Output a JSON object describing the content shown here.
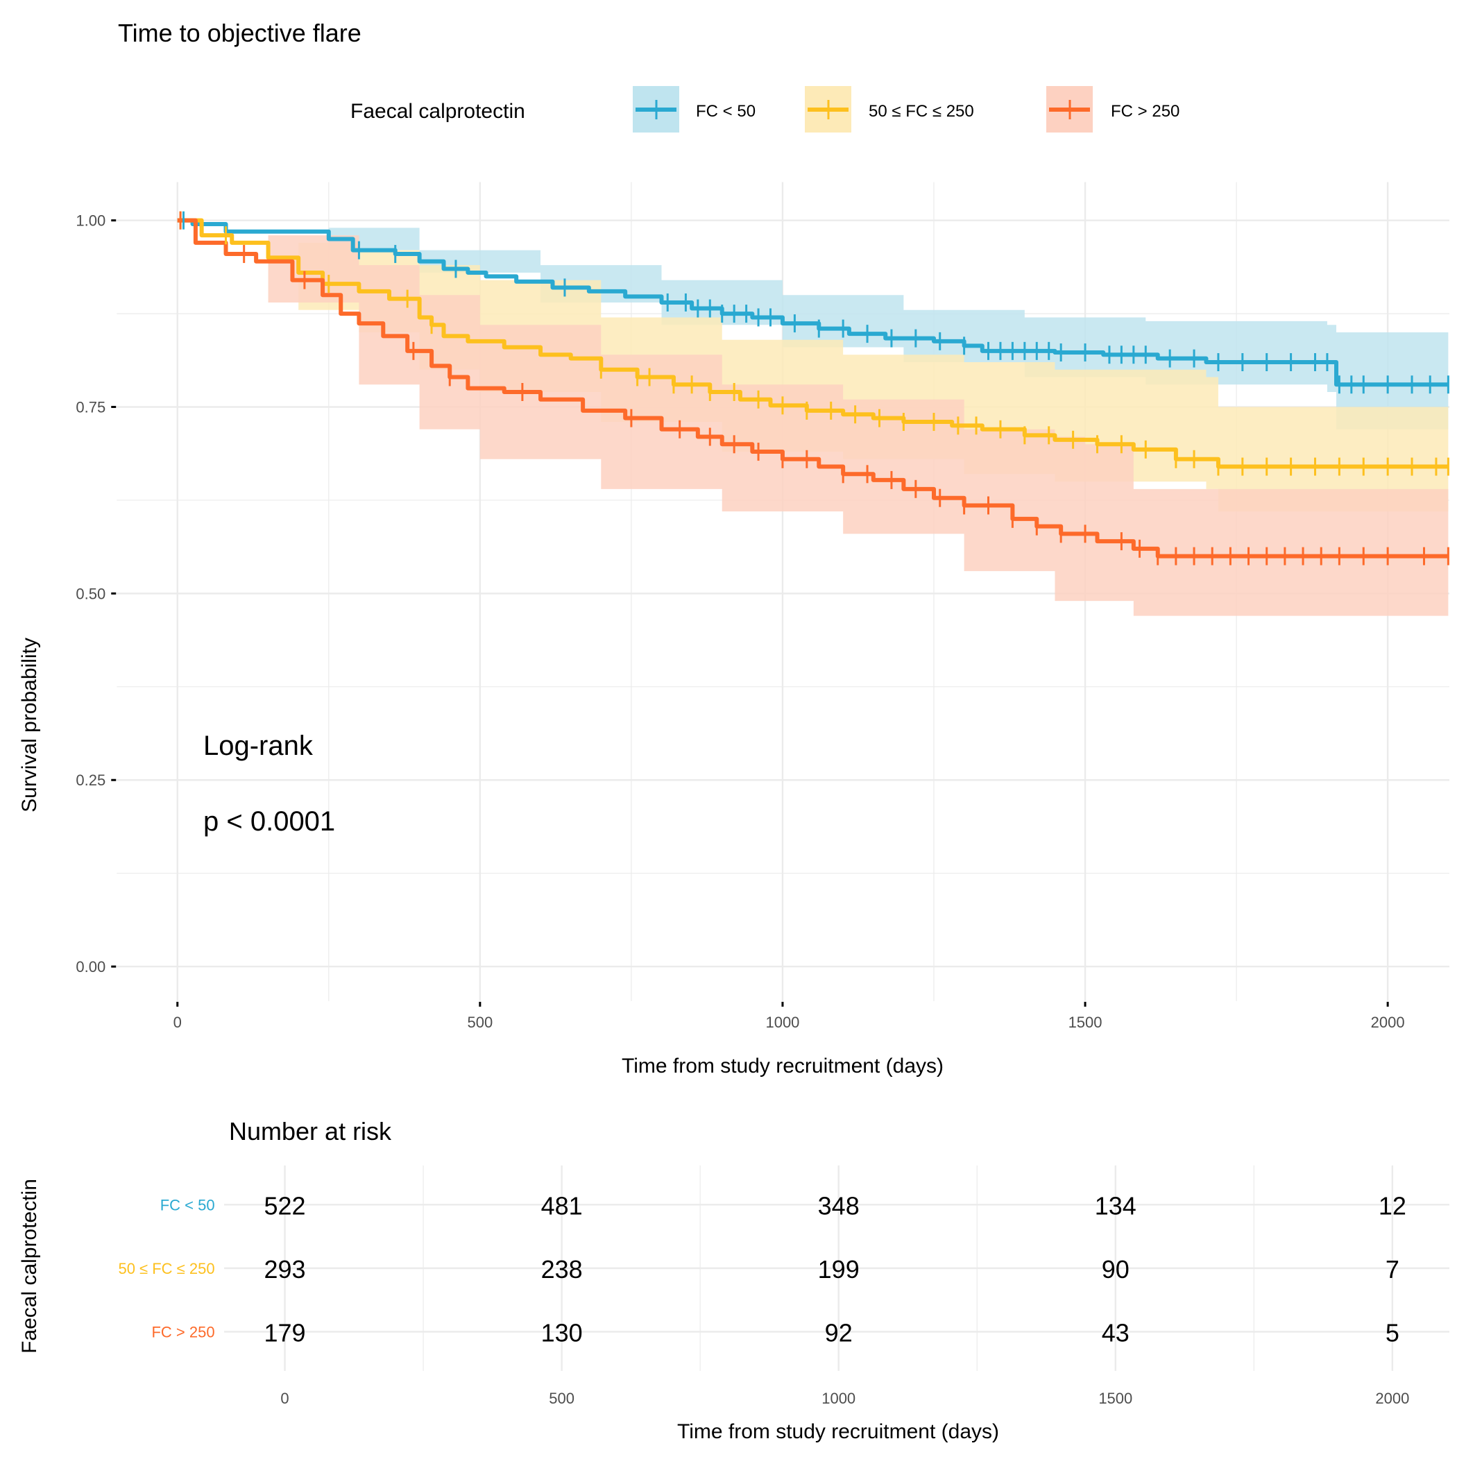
{
  "chart_data": {
    "type": "line",
    "subtype": "kaplan-meier",
    "title": "Time to objective flare",
    "xlabel": "Time from study recruitment (days)",
    "ylabel": "Survival probability",
    "xlim": [
      0,
      2100
    ],
    "ylim": [
      0,
      1
    ],
    "x_ticks": [
      0,
      500,
      1000,
      1500,
      2000
    ],
    "y_ticks": [
      0.0,
      0.25,
      0.5,
      0.75,
      1.0
    ],
    "y_tick_labels": [
      "0.00",
      "0.25",
      "0.50",
      "0.75",
      "1.00"
    ],
    "x_tick_labels": [
      "0",
      "500",
      "1000",
      "1500",
      "2000"
    ],
    "grid": true,
    "legend": {
      "title": "Faecal calprotectin",
      "position": "top",
      "entries": [
        "FC < 50",
        "50 ≤ FC ≤ 250",
        "FC > 250"
      ]
    },
    "annotation": {
      "line1": "Log-rank",
      "line2": "p < 0.0001"
    },
    "series": [
      {
        "name": "FC < 50",
        "color": "#2aa9d1",
        "fill": "#bfe4ef",
        "steps": [
          [
            0,
            1.0
          ],
          [
            25,
            0.995
          ],
          [
            80,
            0.985
          ],
          [
            250,
            0.975
          ],
          [
            290,
            0.96
          ],
          [
            360,
            0.955
          ],
          [
            400,
            0.945
          ],
          [
            440,
            0.935
          ],
          [
            480,
            0.93
          ],
          [
            510,
            0.925
          ],
          [
            560,
            0.918
          ],
          [
            620,
            0.91
          ],
          [
            680,
            0.905
          ],
          [
            740,
            0.898
          ],
          [
            800,
            0.89
          ],
          [
            850,
            0.882
          ],
          [
            900,
            0.875
          ],
          [
            950,
            0.87
          ],
          [
            1000,
            0.862
          ],
          [
            1060,
            0.855
          ],
          [
            1110,
            0.848
          ],
          [
            1170,
            0.842
          ],
          [
            1250,
            0.838
          ],
          [
            1300,
            0.832
          ],
          [
            1330,
            0.825
          ],
          [
            1400,
            0.825
          ],
          [
            1450,
            0.823
          ],
          [
            1530,
            0.82
          ],
          [
            1620,
            0.815
          ],
          [
            1700,
            0.81
          ],
          [
            1900,
            0.81
          ],
          [
            1915,
            0.78
          ],
          [
            2100,
            0.78
          ]
        ],
        "ci_upper": [
          [
            0,
            1.0
          ],
          [
            250,
            0.99
          ],
          [
            400,
            0.96
          ],
          [
            600,
            0.94
          ],
          [
            800,
            0.92
          ],
          [
            1000,
            0.9
          ],
          [
            1200,
            0.88
          ],
          [
            1400,
            0.87
          ],
          [
            1600,
            0.865
          ],
          [
            1900,
            0.86
          ],
          [
            1915,
            0.85
          ],
          [
            2100,
            0.85
          ]
        ],
        "ci_lower": [
          [
            0,
            1.0
          ],
          [
            250,
            0.96
          ],
          [
            400,
            0.93
          ],
          [
            600,
            0.89
          ],
          [
            800,
            0.86
          ],
          [
            1000,
            0.83
          ],
          [
            1200,
            0.81
          ],
          [
            1400,
            0.79
          ],
          [
            1600,
            0.78
          ],
          [
            1900,
            0.77
          ],
          [
            1915,
            0.72
          ],
          [
            2100,
            0.72
          ]
        ],
        "censored": [
          10,
          300,
          360,
          460,
          640,
          810,
          840,
          860,
          880,
          900,
          920,
          940,
          960,
          980,
          1020,
          1060,
          1100,
          1140,
          1180,
          1220,
          1260,
          1300,
          1340,
          1360,
          1380,
          1400,
          1420,
          1440,
          1460,
          1500,
          1540,
          1560,
          1580,
          1600,
          1640,
          1680,
          1720,
          1760,
          1800,
          1840,
          1880,
          1900,
          1920,
          1940,
          1960,
          2000,
          2040,
          2070,
          2100
        ]
      },
      {
        "name": "50 ≤ FC ≤ 250",
        "color": "#fdc01e",
        "fill": "#fdeab7",
        "steps": [
          [
            0,
            1.0
          ],
          [
            40,
            0.98
          ],
          [
            90,
            0.97
          ],
          [
            150,
            0.95
          ],
          [
            200,
            0.93
          ],
          [
            240,
            0.915
          ],
          [
            300,
            0.905
          ],
          [
            350,
            0.895
          ],
          [
            400,
            0.87
          ],
          [
            420,
            0.86
          ],
          [
            440,
            0.845
          ],
          [
            480,
            0.838
          ],
          [
            540,
            0.83
          ],
          [
            600,
            0.82
          ],
          [
            650,
            0.815
          ],
          [
            700,
            0.8
          ],
          [
            760,
            0.79
          ],
          [
            820,
            0.78
          ],
          [
            880,
            0.77
          ],
          [
            930,
            0.76
          ],
          [
            980,
            0.752
          ],
          [
            1040,
            0.745
          ],
          [
            1100,
            0.74
          ],
          [
            1150,
            0.735
          ],
          [
            1200,
            0.73
          ],
          [
            1280,
            0.725
          ],
          [
            1330,
            0.72
          ],
          [
            1400,
            0.712
          ],
          [
            1450,
            0.706
          ],
          [
            1520,
            0.7
          ],
          [
            1580,
            0.693
          ],
          [
            1650,
            0.68
          ],
          [
            1700,
            0.68
          ],
          [
            1720,
            0.67
          ],
          [
            2100,
            0.67
          ]
        ],
        "ci_upper": [
          [
            0,
            1.0
          ],
          [
            200,
            0.97
          ],
          [
            300,
            0.96
          ],
          [
            400,
            0.94
          ],
          [
            500,
            0.92
          ],
          [
            700,
            0.87
          ],
          [
            900,
            0.84
          ],
          [
            1100,
            0.82
          ],
          [
            1300,
            0.81
          ],
          [
            1450,
            0.8
          ],
          [
            1700,
            0.79
          ],
          [
            1720,
            0.75
          ],
          [
            2100,
            0.74
          ]
        ],
        "ci_lower": [
          [
            0,
            1.0
          ],
          [
            200,
            0.88
          ],
          [
            300,
            0.85
          ],
          [
            400,
            0.8
          ],
          [
            500,
            0.77
          ],
          [
            700,
            0.73
          ],
          [
            900,
            0.69
          ],
          [
            1100,
            0.68
          ],
          [
            1300,
            0.66
          ],
          [
            1450,
            0.65
          ],
          [
            1700,
            0.64
          ],
          [
            1720,
            0.61
          ],
          [
            2100,
            0.61
          ]
        ],
        "censored": [
          5,
          80,
          250,
          380,
          420,
          700,
          760,
          780,
          820,
          850,
          880,
          920,
          960,
          1000,
          1040,
          1080,
          1120,
          1160,
          1200,
          1250,
          1290,
          1320,
          1360,
          1400,
          1440,
          1480,
          1520,
          1560,
          1600,
          1650,
          1680,
          1720,
          1760,
          1800,
          1840,
          1880,
          1920,
          1960,
          2000,
          2040,
          2080,
          2100
        ]
      },
      {
        "name": "FC > 250",
        "color": "#fd6a2a",
        "fill": "#fdd1c1",
        "steps": [
          [
            0,
            1.0
          ],
          [
            30,
            0.97
          ],
          [
            80,
            0.955
          ],
          [
            130,
            0.945
          ],
          [
            190,
            0.92
          ],
          [
            240,
            0.9
          ],
          [
            270,
            0.875
          ],
          [
            300,
            0.862
          ],
          [
            340,
            0.845
          ],
          [
            380,
            0.825
          ],
          [
            420,
            0.805
          ],
          [
            450,
            0.79
          ],
          [
            480,
            0.775
          ],
          [
            540,
            0.77
          ],
          [
            600,
            0.76
          ],
          [
            670,
            0.745
          ],
          [
            740,
            0.735
          ],
          [
            800,
            0.72
          ],
          [
            860,
            0.71
          ],
          [
            900,
            0.7
          ],
          [
            950,
            0.69
          ],
          [
            1000,
            0.68
          ],
          [
            1060,
            0.67
          ],
          [
            1100,
            0.66
          ],
          [
            1150,
            0.652
          ],
          [
            1200,
            0.64
          ],
          [
            1250,
            0.628
          ],
          [
            1300,
            0.618
          ],
          [
            1380,
            0.6
          ],
          [
            1420,
            0.59
          ],
          [
            1460,
            0.58
          ],
          [
            1520,
            0.57
          ],
          [
            1580,
            0.56
          ],
          [
            1620,
            0.55
          ],
          [
            2100,
            0.55
          ]
        ],
        "ci_upper": [
          [
            0,
            1.0
          ],
          [
            150,
            0.98
          ],
          [
            300,
            0.94
          ],
          [
            400,
            0.9
          ],
          [
            500,
            0.86
          ],
          [
            700,
            0.82
          ],
          [
            900,
            0.78
          ],
          [
            1100,
            0.76
          ],
          [
            1300,
            0.72
          ],
          [
            1450,
            0.71
          ],
          [
            1500,
            0.7
          ],
          [
            1580,
            0.64
          ],
          [
            2100,
            0.64
          ]
        ],
        "ci_lower": [
          [
            0,
            1.0
          ],
          [
            150,
            0.89
          ],
          [
            300,
            0.78
          ],
          [
            400,
            0.72
          ],
          [
            500,
            0.68
          ],
          [
            700,
            0.64
          ],
          [
            900,
            0.61
          ],
          [
            1100,
            0.58
          ],
          [
            1300,
            0.53
          ],
          [
            1450,
            0.49
          ],
          [
            1580,
            0.47
          ],
          [
            2100,
            0.47
          ]
        ],
        "censored": [
          5,
          110,
          210,
          390,
          450,
          570,
          750,
          830,
          880,
          920,
          960,
          1000,
          1040,
          1100,
          1140,
          1180,
          1220,
          1260,
          1300,
          1340,
          1380,
          1420,
          1460,
          1500,
          1560,
          1590,
          1620,
          1650,
          1680,
          1710,
          1740,
          1770,
          1800,
          1830,
          1860,
          1890,
          1920,
          1960,
          2000,
          2060,
          2100
        ]
      }
    ],
    "risk_table": {
      "title": "Number at risk",
      "ylabel": "Faecal calprotectin",
      "xlabel": "Time from study recruitment (days)",
      "times": [
        0,
        500,
        1000,
        1500,
        2000
      ],
      "time_labels": [
        "0",
        "500",
        "1000",
        "1500",
        "2000"
      ],
      "rows": [
        {
          "strata": "FC < 50",
          "color": "#2aa9d1",
          "counts": [
            "522",
            "481",
            "348",
            "134",
            "12"
          ]
        },
        {
          "strata": "50 ≤ FC ≤ 250",
          "color": "#fdc01e",
          "counts": [
            "293",
            "238",
            "199",
            "90",
            "7"
          ]
        },
        {
          "strata": "FC > 250",
          "color": "#fd6a2a",
          "counts": [
            "179",
            "130",
            "92",
            "43",
            "5"
          ]
        }
      ]
    }
  }
}
